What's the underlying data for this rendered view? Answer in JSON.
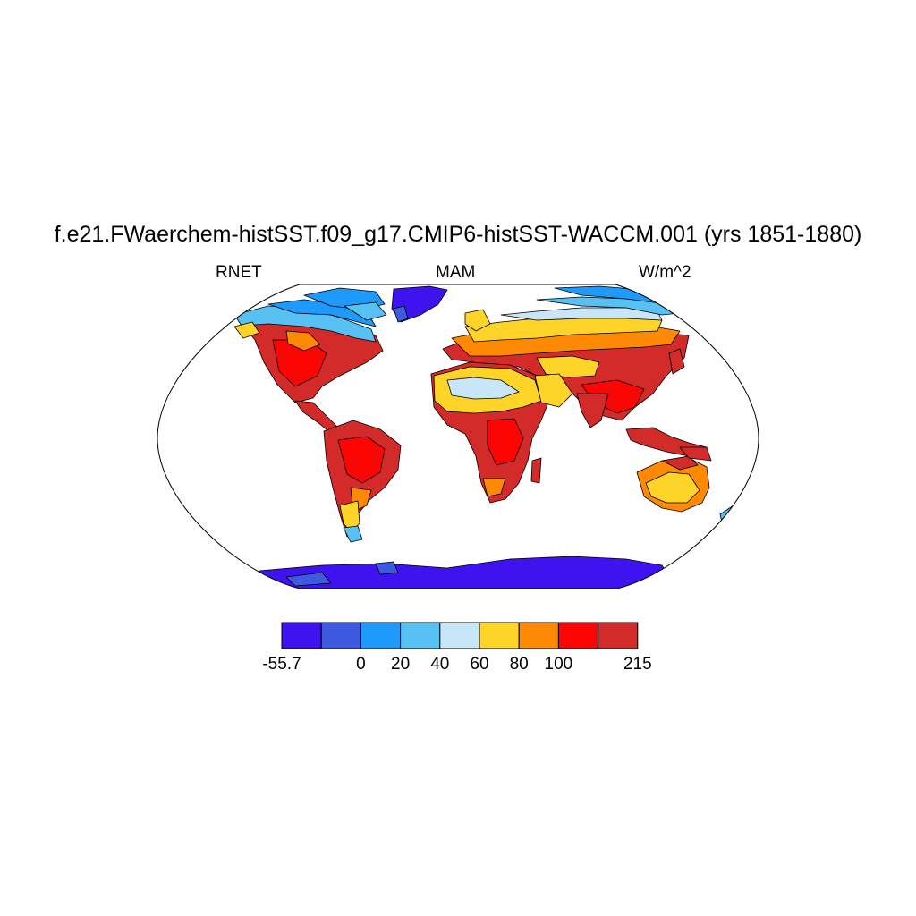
{
  "title": "f.e21.FWaerchem-histSST.f09_g17.CMIP6-histSST-WACCM.001 (yrs 1851-1880)",
  "subtitle_left": "RNET",
  "subtitle_center": "MAM",
  "subtitle_right": "W/m^2",
  "colorbar": {
    "colors": [
      "#3f12f0",
      "#3e5be0",
      "#1e9afc",
      "#56c1f2",
      "#c8e6f8",
      "#fed428",
      "#fd8905",
      "#fd0505",
      "#d32a2a"
    ],
    "labels": [
      "-55.7",
      "0",
      "20",
      "40",
      "60",
      "80",
      "100",
      "215"
    ]
  },
  "map": {
    "projection": "Robinson",
    "regions": [
      {
        "name": "Antarctica",
        "value": "below 0"
      },
      {
        "name": "Greenland",
        "value": "below 0"
      },
      {
        "name": "Sahara",
        "value": "40-80"
      },
      {
        "name": "Amazon",
        "value": "above 100"
      },
      {
        "name": "Australia",
        "value": "60-100"
      }
    ]
  }
}
